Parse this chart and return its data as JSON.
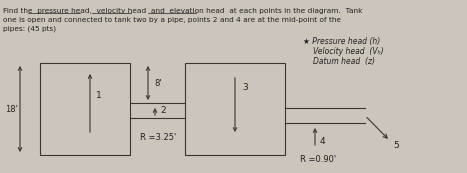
{
  "title_line1": "Find the  pressure head,  velocity head  and  elevation head  at each points in the diagram.  Tank",
  "title_line2": "one is open and connected to tank two by a pipe, points 2 and 4 are at the mid-point of the",
  "title_line3": "pipes: (45 pts)",
  "legend_star": "★ Pressure head (h)",
  "legend_velocity": "Velocity head  (Vₕ)",
  "legend_datum": "Datum head  (z)",
  "dim_18": "18'",
  "dim_8": "8'",
  "label_R325": "R =3.25'",
  "label_R090": "R =0.90'",
  "point1": "1",
  "point2": "2",
  "point3": "3",
  "point4": "4",
  "point5": "5",
  "bg_color": "#ccc5bc",
  "line_color": "#3a3530",
  "text_color": "#222222",
  "underline_words": [
    "pressure head",
    "velocity head",
    "elevation head"
  ]
}
